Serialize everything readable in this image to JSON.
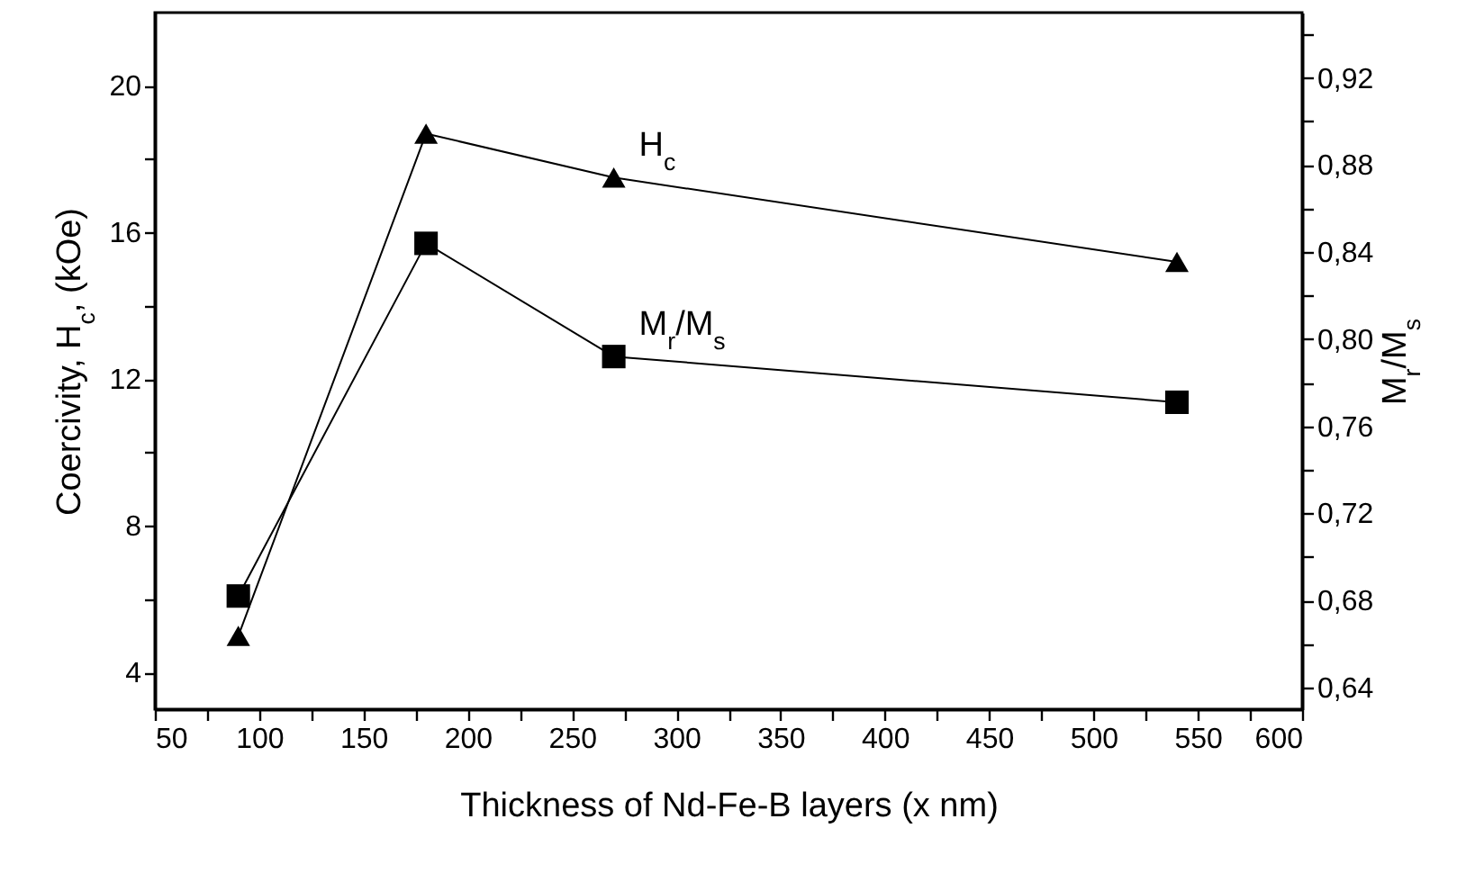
{
  "chart_data": {
    "type": "line",
    "xlabel": "Thickness of Nd-Fe-B layers (x nm)",
    "ylabel": "Coercivity, H$_{c}$, (kOe)",
    "y2label": "M$_{r}$/M$_{s}$",
    "x": [
      90,
      180,
      270,
      540
    ],
    "xlim": [
      50,
      600
    ],
    "xticks": [
      50,
      {
        "value": 75,
        "label": null
      },
      100,
      {
        "value": 125,
        "label": null
      },
      150,
      {
        "value": 175,
        "label": null
      },
      200,
      {
        "value": 225,
        "label": null
      },
      250,
      {
        "value": 275,
        "label": null
      },
      300,
      {
        "value": 325,
        "label": null
      },
      350,
      {
        "value": 375,
        "label": null
      },
      400,
      {
        "value": 425,
        "label": null
      },
      450,
      {
        "value": 475,
        "label": null
      },
      500,
      {
        "value": 525,
        "label": null
      },
      550,
      {
        "value": 575,
        "label": null
      },
      600
    ],
    "ylim": [
      3,
      22
    ],
    "yticks": [
      4,
      {
        "value": 6,
        "label": null
      },
      8,
      {
        "value": 10,
        "label": null
      },
      12,
      {
        "value": 14,
        "label": null
      },
      16,
      {
        "value": 18,
        "label": null
      },
      20
    ],
    "y2lim": [
      0.63,
      0.95
    ],
    "y2ticks": [
      {
        "value": 0.64,
        "label": "0,64"
      },
      {
        "value": 0.66,
        "label": null
      },
      {
        "value": 0.68,
        "label": "0,68"
      },
      {
        "value": 0.7,
        "label": null
      },
      {
        "value": 0.72,
        "label": "0,72"
      },
      {
        "value": 0.74,
        "label": null
      },
      {
        "value": 0.76,
        "label": "0,76"
      },
      {
        "value": 0.78,
        "label": null
      },
      {
        "value": 0.8,
        "label": "0,80"
      },
      {
        "value": 0.82,
        "label": null
      },
      {
        "value": 0.84,
        "label": "0,84"
      },
      {
        "value": 0.86,
        "label": null
      },
      {
        "value": 0.88,
        "label": "0,88"
      },
      {
        "value": 0.9,
        "label": null
      },
      {
        "value": 0.92,
        "label": "0,92"
      },
      {
        "value": 0.94,
        "label": null
      }
    ],
    "series": [
      {
        "name": "H$_{c}$",
        "color": "#000000",
        "marker": "triangle",
        "values": [
          5.0,
          18.7,
          17.5,
          15.2
        ]
      },
      {
        "name": "M$_{r}$/M$_{s}$",
        "color": "#000000",
        "marker": "square",
        "axis": "y2",
        "values": [
          0.682,
          0.844,
          0.792,
          0.771
        ]
      }
    ]
  }
}
